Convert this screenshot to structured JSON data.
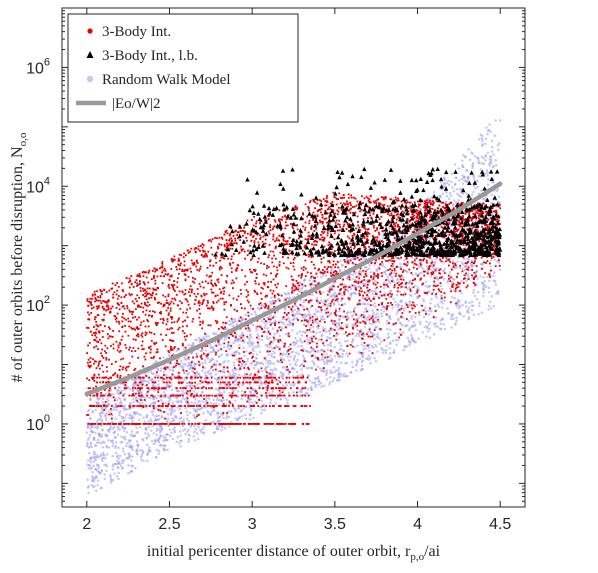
{
  "chart_data": {
    "type": "scatter",
    "title": "",
    "xlabel": "initial pericenter distance of outer orbit, r_{p,o}/a_i",
    "ylabel": "# of outer orbits before disruption, N_{o,o}",
    "xlim": [
      1.85,
      4.65
    ],
    "ylim": [
      0.04,
      10000000.0
    ],
    "yscale": "log",
    "grid": false,
    "legend_position": "top-left",
    "x_ticks": [
      {
        "value": 2,
        "label": "2"
      },
      {
        "value": 2.5,
        "label": "2.5"
      },
      {
        "value": 3,
        "label": "3"
      },
      {
        "value": 3.5,
        "label": "3.5"
      },
      {
        "value": 4,
        "label": "4"
      },
      {
        "value": 4.5,
        "label": "4.5"
      }
    ],
    "y_ticks": [
      {
        "value": 1,
        "label": "10",
        "exp": "0"
      },
      {
        "value": 100,
        "label": "10",
        "exp": "2"
      },
      {
        "value": 10000,
        "label": "10",
        "exp": "4"
      },
      {
        "value": 1000000,
        "label": "10",
        "exp": "6"
      }
    ],
    "series": [
      {
        "name": "Random Walk Model",
        "marker": "circle",
        "color": "#9a9aee",
        "x_range": [
          2.0,
          4.5
        ],
        "approx_points": 3500,
        "lower_envelope": [
          [
            2.0,
            0.06
          ],
          [
            2.5,
            0.35
          ],
          [
            3.0,
            1.2
          ],
          [
            3.5,
            5
          ],
          [
            4.0,
            20
          ],
          [
            4.5,
            100
          ]
        ],
        "upper_envelope": [
          [
            2.0,
            3
          ],
          [
            2.5,
            15
          ],
          [
            3.0,
            90
          ],
          [
            3.5,
            500
          ],
          [
            4.0,
            4000
          ],
          [
            4.5,
            200000
          ]
        ]
      },
      {
        "name": "3-Body Int.",
        "marker": "dot",
        "color": "#e60000",
        "x_range": [
          2.0,
          4.5
        ],
        "approx_points": 4200,
        "quantized_levels": [
          1,
          2,
          3,
          4,
          5,
          6
        ],
        "lower_envelope": [
          [
            2.0,
            1
          ],
          [
            3.0,
            1
          ],
          [
            3.5,
            6
          ],
          [
            4.0,
            40
          ],
          [
            4.5,
            300
          ]
        ],
        "upper_envelope": [
          [
            2.0,
            150
          ],
          [
            2.5,
            600
          ],
          [
            3.0,
            3000
          ],
          [
            3.5,
            8000
          ],
          [
            4.0,
            6000
          ],
          [
            4.5,
            5000
          ]
        ]
      },
      {
        "name": "3-Body Int., l.b.",
        "marker": "triangle",
        "color": "#000000",
        "x_range": [
          2.75,
          4.5
        ],
        "approx_points": 900,
        "typical_y_range": [
          700,
          5000
        ],
        "max_y": 20000
      },
      {
        "name": "|E_o/W|^2",
        "marker": "line",
        "color": "#999999",
        "x": [
          2.0,
          2.25,
          2.5,
          2.75,
          3.0,
          3.25,
          3.5,
          3.75,
          4.0,
          4.25,
          4.5
        ],
        "y": [
          3.2,
          6,
          12,
          25,
          55,
          120,
          280,
          650,
          1600,
          4000,
          11000
        ]
      }
    ]
  }
}
